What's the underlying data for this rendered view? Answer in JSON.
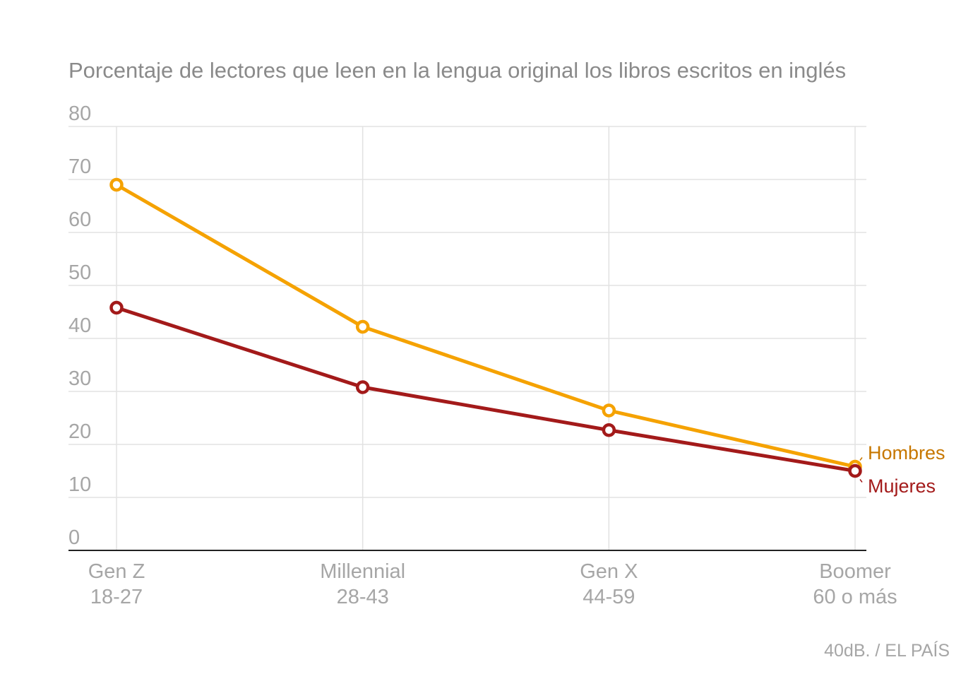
{
  "chart_data": {
    "type": "line",
    "title": "Porcentaje de lectores que leen en la lengua original los libros escritos en inglés",
    "categories": [
      {
        "name": "Gen Z",
        "range": "18-27"
      },
      {
        "name": "Millennial",
        "range": "28-43"
      },
      {
        "name": "Gen X",
        "range": "44-59"
      },
      {
        "name": "Boomer",
        "range": "60 o más"
      }
    ],
    "series": [
      {
        "name": "Hombres",
        "color": "#f5a200",
        "label_color": "#c77700",
        "values": [
          69,
          42.2,
          26.4,
          15.8
        ]
      },
      {
        "name": "Mujeres",
        "color": "#a31a1a",
        "label_color": "#a31a1a",
        "values": [
          45.8,
          30.8,
          22.7,
          15
        ]
      }
    ],
    "yticks": [
      0,
      10,
      20,
      30,
      40,
      50,
      60,
      70,
      80
    ],
    "ylim": [
      0,
      80
    ],
    "grid": true,
    "legend_placement": "right, at line ends",
    "source": "40dB. / EL PAÍS"
  }
}
